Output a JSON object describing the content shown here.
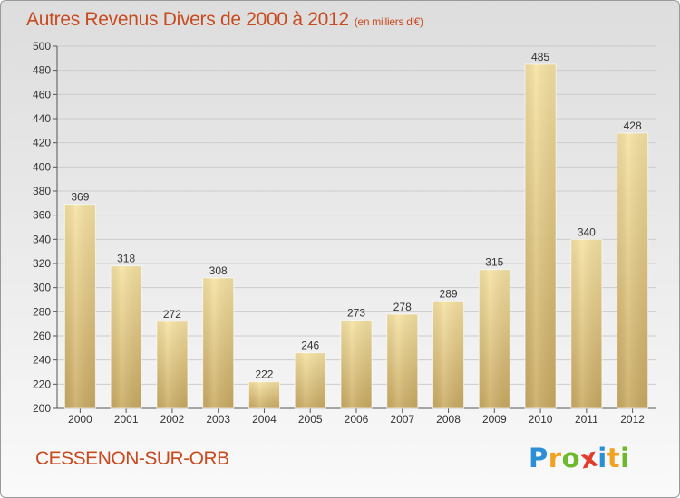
{
  "header": {
    "title": "Autres Revenus Divers de 2000 à 2012",
    "unit": "(en milliers d'€)"
  },
  "footer": {
    "city": "CESSENON-SUR-ORB"
  },
  "logo": {
    "letters": [
      "P",
      "r",
      "o",
      "x",
      "i",
      "t",
      "i"
    ],
    "colors": [
      "#2a8fd6",
      "#f0a323",
      "#6cba2c",
      "#e23c2d",
      "#2a8fd6",
      "#f0a323",
      "#6cba2c"
    ]
  },
  "colors": {
    "title": "#c84a1e",
    "bar_light": "#f6e2a2",
    "bar_dark": "#c9aa62",
    "grid": "#cccccc"
  },
  "chart_data": {
    "type": "bar",
    "title": "Autres Revenus Divers de 2000 à 2012",
    "subtitle": "(en milliers d'€)",
    "categories": [
      "2000",
      "2001",
      "2002",
      "2003",
      "2004",
      "2005",
      "2006",
      "2007",
      "2008",
      "2009",
      "2010",
      "2011",
      "2012"
    ],
    "values": [
      369,
      318,
      272,
      308,
      222,
      246,
      273,
      278,
      289,
      315,
      485,
      340,
      428
    ],
    "ylim": [
      200,
      500
    ],
    "yticks": [
      200,
      220,
      240,
      260,
      280,
      300,
      320,
      340,
      360,
      380,
      400,
      420,
      440,
      460,
      480,
      500
    ],
    "grid": true,
    "legend": "none"
  }
}
